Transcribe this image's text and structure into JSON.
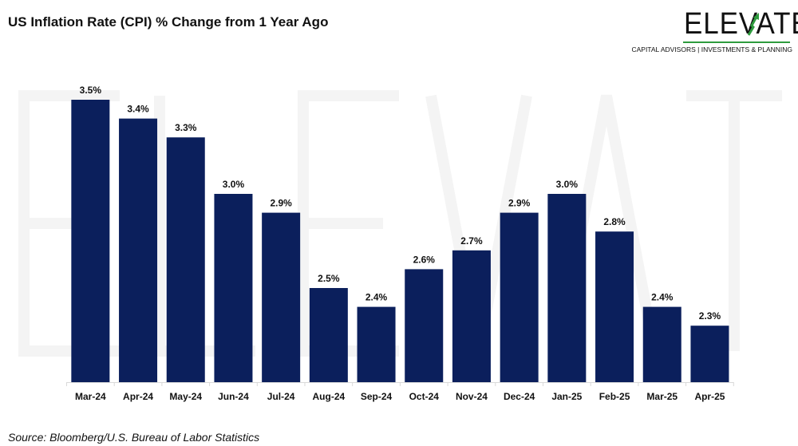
{
  "title": "US Inflation Rate (CPI) % Change from 1 Year Ago",
  "source": "Source: Bloomberg/U.S. Bureau of Labor Statistics",
  "logo": {
    "word": "ELEVATE",
    "tagline": "CAPITAL ADVISORS | INVESTMENTS & PLANNING",
    "accent": "#2e9b3e"
  },
  "watermark": {
    "word": "ELEVATE",
    "tagline": "CAPITAL ADVISORS|INVESTMENTS & PLANNING"
  },
  "chart_data": {
    "type": "bar",
    "title": "US Inflation Rate (CPI) % Change from 1 Year Ago",
    "categories": [
      "Mar-24",
      "Apr-24",
      "May-24",
      "Jun-24",
      "Jul-24",
      "Aug-24",
      "Sep-24",
      "Oct-24",
      "Nov-24",
      "Dec-24",
      "Jan-25",
      "Feb-25",
      "Mar-25",
      "Apr-25"
    ],
    "values": [
      3.5,
      3.4,
      3.3,
      3.0,
      2.9,
      2.5,
      2.4,
      2.6,
      2.7,
      2.9,
      3.0,
      2.8,
      2.4,
      2.3
    ],
    "data_labels": [
      "3.5%",
      "3.4%",
      "3.3%",
      "3.0%",
      "2.9%",
      "2.5%",
      "2.4%",
      "2.6%",
      "2.7%",
      "2.9%",
      "3.0%",
      "2.8%",
      "2.4%",
      "2.3%"
    ],
    "ylim": [
      2.0,
      3.6
    ],
    "xlabel": "",
    "ylabel": "",
    "grid": false,
    "bar_color": "#0b1f5c"
  }
}
